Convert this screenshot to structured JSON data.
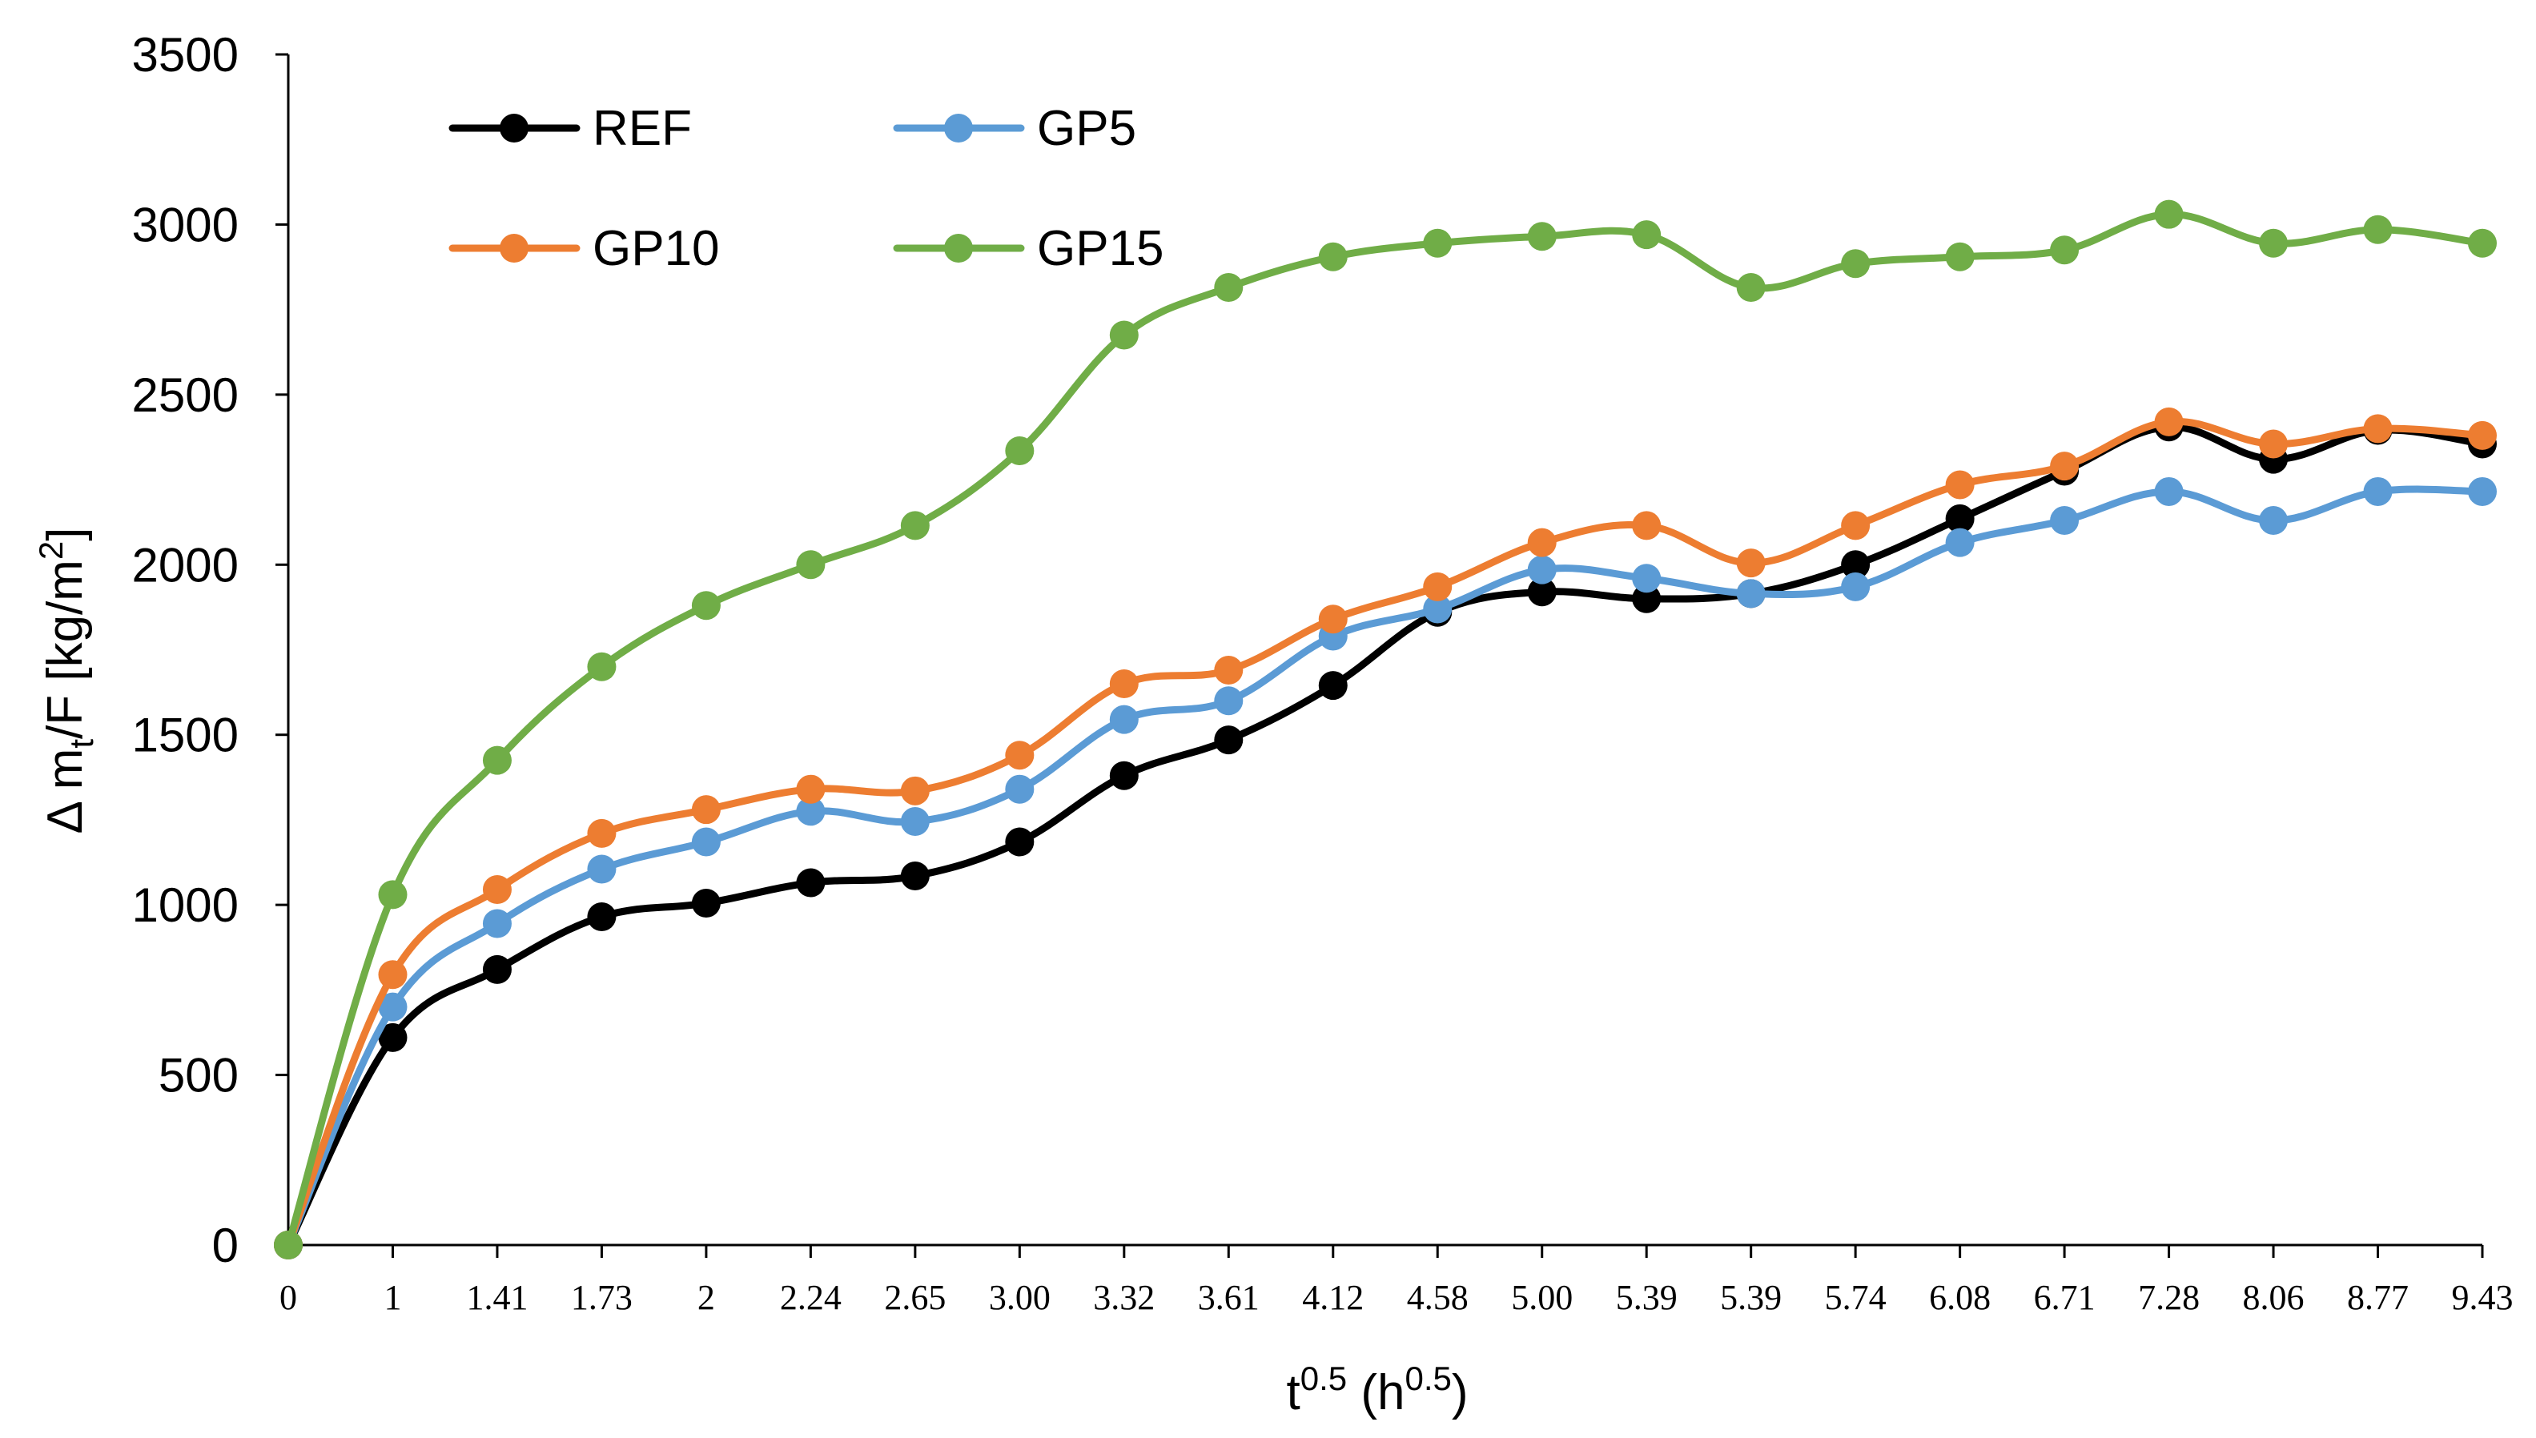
{
  "chart_data": {
    "type": "line",
    "title": "",
    "xlabel": "t^0.5 (h^0.5)",
    "xlabel_parts": {
      "base": "t",
      "sup": "0.5",
      "mid": " (h",
      "sup2": "0.5",
      "end": ")"
    },
    "ylabel": "Δ mt/F [kg/m2]",
    "ylabel_parts": {
      "pre": "Δ m",
      "sub": "t",
      "mid": "/F [kg/m",
      "sup": "2",
      "end": "]"
    },
    "ylim": [
      0,
      3500
    ],
    "yticks": [
      0,
      500,
      1000,
      1500,
      2000,
      2500,
      3000,
      3500
    ],
    "ytick_labels": [
      "0",
      "500",
      "1000",
      "1500",
      "2000",
      "2500",
      "3000",
      "3500"
    ],
    "categories": [
      "0",
      "1",
      "1.41",
      "1.73",
      "2",
      "2.24",
      "2.65",
      "3.00",
      "3.32",
      "3.61",
      "4.12",
      "4.58",
      "5.00",
      "5.39",
      "5.39",
      "5.74",
      "6.08",
      "6.71",
      "7.28",
      "8.06",
      "8.77",
      "9.43"
    ],
    "grid": false,
    "legend_position": "top-left",
    "series": [
      {
        "name": "REF",
        "color": "#000000",
        "values": [
          0,
          610,
          810,
          965,
          1005,
          1065,
          1085,
          1185,
          1380,
          1485,
          1645,
          1860,
          1920,
          1900,
          1915,
          2000,
          2135,
          2275,
          2405,
          2310,
          2395,
          2355
        ]
      },
      {
        "name": "GP5",
        "color": "#5b9bd5",
        "values": [
          0,
          700,
          945,
          1105,
          1185,
          1275,
          1245,
          1340,
          1545,
          1600,
          1790,
          1870,
          1985,
          1960,
          1915,
          1935,
          2065,
          2130,
          2215,
          2130,
          2215,
          2215
        ]
      },
      {
        "name": "GP10",
        "color": "#ed7d31",
        "values": [
          0,
          795,
          1045,
          1210,
          1280,
          1340,
          1335,
          1440,
          1650,
          1690,
          1840,
          1935,
          2065,
          2115,
          2005,
          2115,
          2235,
          2290,
          2420,
          2355,
          2400,
          2380
        ]
      },
      {
        "name": "GP15",
        "color": "#70ad47",
        "values": [
          0,
          1030,
          1425,
          1700,
          1880,
          2000,
          2115,
          2335,
          2675,
          2815,
          2905,
          2945,
          2965,
          2970,
          2815,
          2885,
          2905,
          2925,
          3030,
          2945,
          2985,
          2945
        ]
      }
    ]
  }
}
